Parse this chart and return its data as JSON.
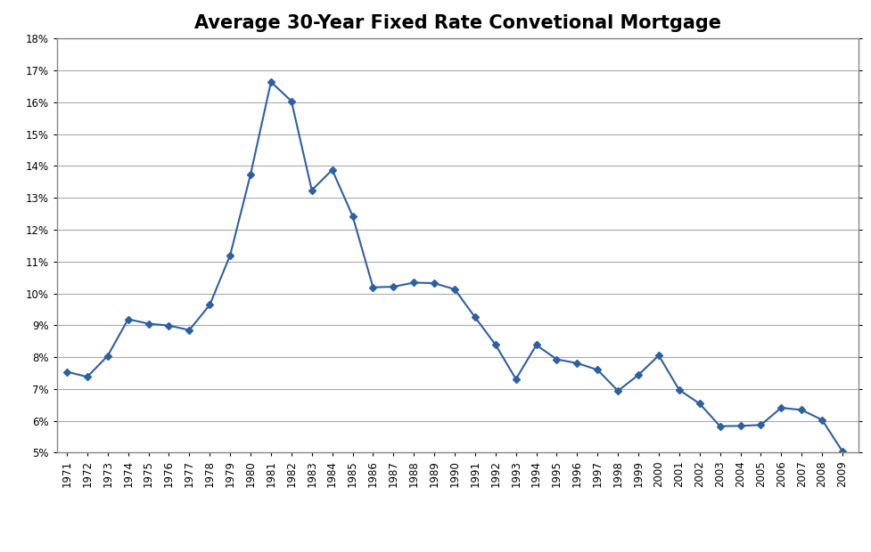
{
  "title": "Average 30-Year Fixed Rate Convetional Mortgage",
  "years": [
    1971,
    1972,
    1973,
    1974,
    1975,
    1976,
    1977,
    1978,
    1979,
    1980,
    1981,
    1982,
    1983,
    1984,
    1985,
    1986,
    1987,
    1988,
    1989,
    1990,
    1991,
    1992,
    1993,
    1994,
    1995,
    1996,
    1997,
    1998,
    1999,
    2000,
    2001,
    2002,
    2003,
    2004,
    2005,
    2006,
    2007,
    2008,
    2009
  ],
  "rates": [
    7.54,
    7.38,
    8.04,
    9.19,
    9.05,
    8.99,
    8.85,
    9.64,
    11.2,
    13.74,
    16.64,
    16.04,
    13.24,
    13.88,
    12.43,
    10.19,
    10.21,
    10.34,
    10.32,
    10.13,
    9.25,
    8.39,
    7.31,
    8.38,
    7.93,
    7.81,
    7.6,
    6.94,
    7.44,
    8.05,
    6.97,
    6.54,
    5.83,
    5.84,
    5.87,
    6.41,
    6.34,
    6.03,
    5.04
  ],
  "line_color": "#2e5fa3",
  "marker": "D",
  "marker_size": 4,
  "background_color": "#ffffff",
  "grid_color": "#aaaaaa",
  "ylim": [
    5.0,
    18.0
  ],
  "ytick_values": [
    5,
    6,
    7,
    8,
    9,
    10,
    11,
    12,
    13,
    14,
    15,
    16,
    17,
    18
  ],
  "title_fontsize": 15,
  "tick_fontsize": 8.5,
  "border_color": "#888888"
}
